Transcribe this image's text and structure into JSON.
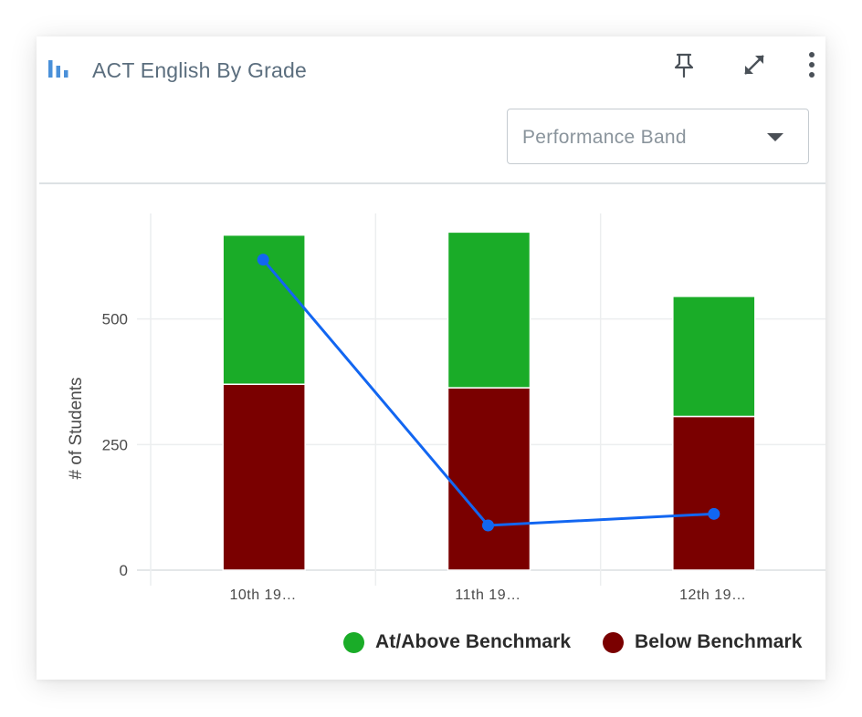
{
  "header": {
    "title": "ACT English By Grade",
    "chart_icon": "bar-chart-icon",
    "pin_icon": "pin-icon",
    "expand_icon": "expand-icon",
    "more_icon": "more-vertical-icon",
    "icon_color": "#4a90d9"
  },
  "filter": {
    "selected": "Performance Band",
    "caret_icon": "caret-down-icon"
  },
  "chart_data": {
    "type": "bar",
    "stacked": true,
    "categories": [
      "10th 19…",
      "11th 19…",
      "12th 19…"
    ],
    "ylabel": "# of Students",
    "xlabel": "",
    "ylim": [
      0,
      710
    ],
    "yticks": [
      0,
      250,
      500
    ],
    "grid": true,
    "series": [
      {
        "name": "Below Benchmark",
        "values": [
          370,
          363,
          306
        ],
        "color": "#7a0000"
      },
      {
        "name": "At/Above Benchmark",
        "values": [
          297,
          310,
          239
        ],
        "color": "#1aac28"
      }
    ],
    "line": {
      "values": [
        618,
        89,
        112
      ],
      "color": "#1266f1"
    },
    "legend_position": "bottom-right"
  }
}
